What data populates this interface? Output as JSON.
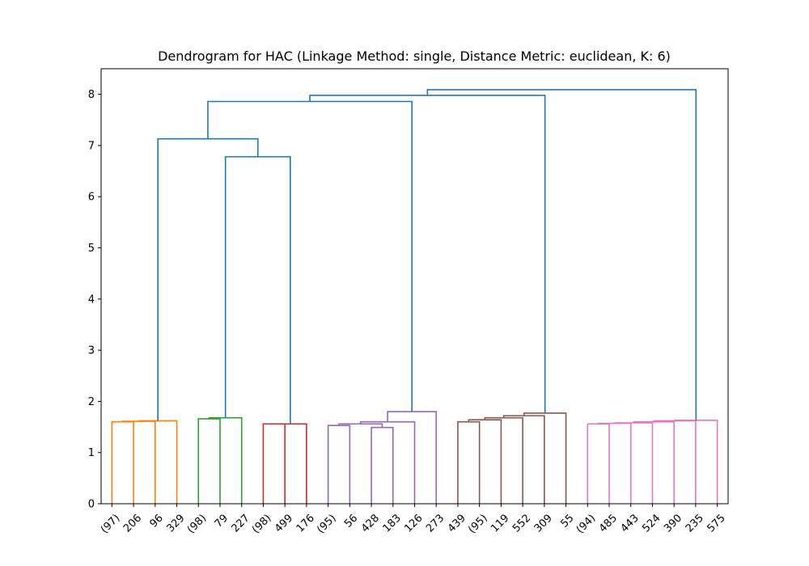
{
  "chart_data": {
    "type": "dendrogram",
    "title": "Dendrogram for HAC (Linkage Method: single, Distance Metric: euclidean, K: 6)",
    "xlabel": "",
    "ylabel": "",
    "ylim": [
      0,
      8.5
    ],
    "y_ticks": [
      "0",
      "1",
      "2",
      "3",
      "4",
      "5",
      "6",
      "7",
      "8"
    ],
    "grid": false,
    "leaves": [
      "(97)",
      "206",
      "96",
      "329",
      "(98)",
      "79",
      "227",
      "(98)",
      "499",
      "176",
      "(95)",
      "56",
      "428",
      "183",
      "126",
      "273",
      "439",
      "(95)",
      "119",
      "552",
      "309",
      "55",
      "(94)",
      "485",
      "443",
      "524",
      "390",
      "235",
      "575"
    ],
    "colors": {
      "above_threshold": "#1f77b4",
      "clusters": [
        "#ff7f0e",
        "#2ca02c",
        "#d62728",
        "#9467bd",
        "#8c564b",
        "#e377c2"
      ]
    },
    "merges": [
      {
        "left": "L0",
        "right": "L1",
        "height": 1.6,
        "cluster": 0
      },
      {
        "left": "M0",
        "right": "L2",
        "height": 1.61,
        "cluster": 0
      },
      {
        "left": "M1",
        "right": "L3",
        "height": 1.62,
        "cluster": 0
      },
      {
        "left": "L4",
        "right": "L5",
        "height": 1.66,
        "cluster": 1
      },
      {
        "left": "M3",
        "right": "L6",
        "height": 1.68,
        "cluster": 1
      },
      {
        "left": "L7",
        "right": "L8",
        "height": 1.56,
        "cluster": 2
      },
      {
        "left": "M5",
        "right": "L9",
        "height": 1.56,
        "cluster": 2
      },
      {
        "left": "L10",
        "right": "L11",
        "height": 1.53,
        "cluster": 3
      },
      {
        "left": "L12",
        "right": "L13",
        "height": 1.49,
        "cluster": 3
      },
      {
        "left": "M7",
        "right": "M8",
        "height": 1.56,
        "cluster": 3
      },
      {
        "left": "M9",
        "right": "L14",
        "height": 1.6,
        "cluster": 3
      },
      {
        "left": "M10",
        "right": "L15",
        "height": 1.8,
        "cluster": 3
      },
      {
        "left": "L16",
        "right": "L17",
        "height": 1.6,
        "cluster": 4
      },
      {
        "left": "M12",
        "right": "L18",
        "height": 1.64,
        "cluster": 4
      },
      {
        "left": "M13",
        "right": "L19",
        "height": 1.68,
        "cluster": 4
      },
      {
        "left": "M14",
        "right": "L20",
        "height": 1.72,
        "cluster": 4
      },
      {
        "left": "M15",
        "right": "L21",
        "height": 1.77,
        "cluster": 4
      },
      {
        "left": "L22",
        "right": "L23",
        "height": 1.56,
        "cluster": 5
      },
      {
        "left": "M17",
        "right": "L24",
        "height": 1.57,
        "cluster": 5
      },
      {
        "left": "M18",
        "right": "L25",
        "height": 1.58,
        "cluster": 5
      },
      {
        "left": "M19",
        "right": "L26",
        "height": 1.6,
        "cluster": 5
      },
      {
        "left": "M20",
        "right": "L27",
        "height": 1.62,
        "cluster": 5
      },
      {
        "left": "M21",
        "right": "L28",
        "height": 1.63,
        "cluster": 5
      },
      {
        "left": "M4",
        "right": "M6",
        "height": 6.78,
        "cluster": -1
      },
      {
        "left": "M2",
        "right": "M23",
        "height": 7.13,
        "cluster": -1
      },
      {
        "left": "M24",
        "right": "M11",
        "height": 7.86,
        "cluster": -1
      },
      {
        "left": "M25",
        "right": "M16",
        "height": 7.98,
        "cluster": -1
      },
      {
        "left": "M26",
        "right": "M22",
        "height": 8.09,
        "cluster": -1
      }
    ]
  }
}
